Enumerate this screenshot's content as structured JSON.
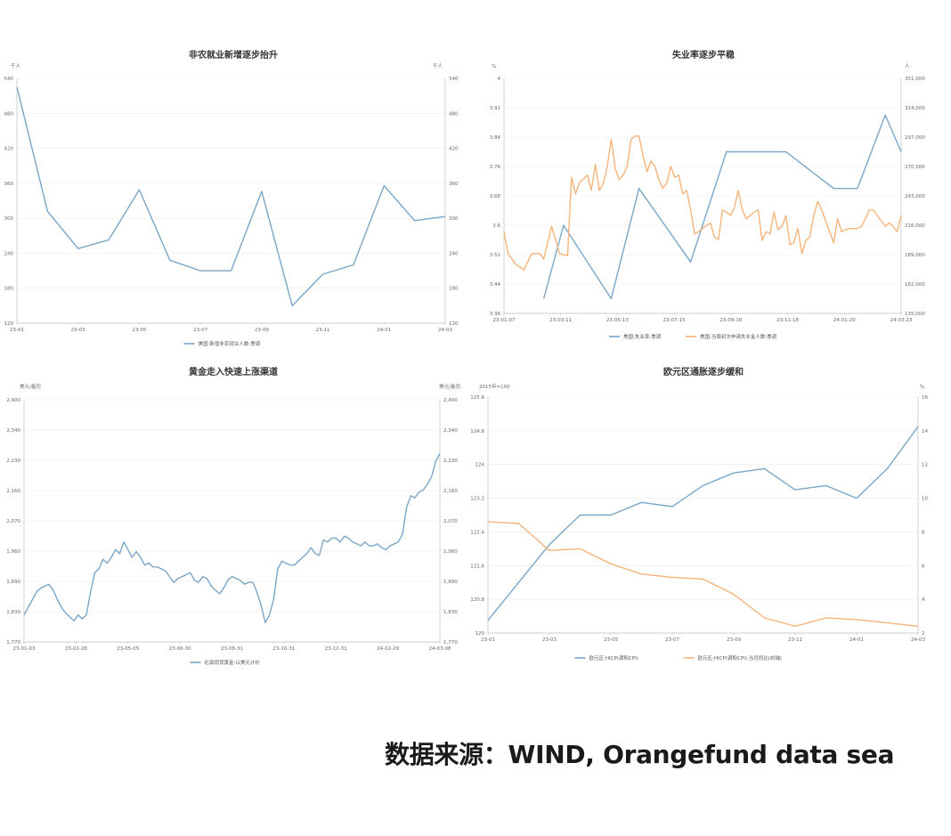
{
  "source_note": "数据来源：WIND, Orangefund data sea",
  "chart_data": [
    {
      "type": "line",
      "title": "非农就业新增逐步抬升",
      "unit_left": "千人",
      "unit_right": "千人",
      "categories": [
        "23-01",
        "23-02",
        "23-03",
        "23-04",
        "23-05",
        "23-06",
        "23-07",
        "23-08",
        "23-09",
        "23-10",
        "23-11",
        "23-12",
        "24-01",
        "24-02",
        "24-03"
      ],
      "x_ticks": [
        "23-01",
        "23-03",
        "23-05",
        "23-07",
        "23-09",
        "23-11",
        "24-01",
        "24-03"
      ],
      "y_ticks": [
        120,
        180,
        240,
        300,
        360,
        420,
        480,
        540
      ],
      "ylim": [
        120,
        540
      ],
      "series": [
        {
          "name": "美国:新增非农就业人数:季调",
          "color": "#7aa6c8",
          "values": [
            525,
            312,
            248,
            263,
            349,
            228,
            210,
            210,
            346,
            150,
            204,
            220,
            356,
            296,
            303
          ]
        }
      ]
    },
    {
      "type": "line",
      "title": "失业率逐步平稳",
      "unit_left": "%",
      "unit_right": "人",
      "x_ticks": [
        "23-01-07",
        "23-03-11",
        "23-05-13",
        "23-07-15",
        "23-09-16",
        "23-11-18",
        "24-01-20",
        "24-03-23"
      ],
      "y_ticks_left": [
        "3.36",
        "3.44",
        "3.52",
        "3.6",
        "3.68",
        "3.76",
        "3.84",
        "3.92",
        "4"
      ],
      "y_ticks_right": [
        "135,000",
        "162,000",
        "189,000",
        "216,000",
        "243,000",
        "270,000",
        "297,000",
        "324,000",
        "351,000"
      ],
      "ylim_left": [
        3.36,
        4.0
      ],
      "ylim_right": [
        135000,
        351000
      ],
      "series": [
        {
          "name": "美国:失业率:季调",
          "axis": "left",
          "color": "#7aa6c8",
          "x": [
            0.1,
            0.15,
            0.27,
            0.34,
            0.47,
            0.56,
            0.71,
            0.83,
            0.89,
            0.96,
            1.0
          ],
          "values": [
            3.4,
            3.6,
            3.4,
            3.7,
            3.5,
            3.8,
            3.8,
            3.7,
            3.7,
            3.9,
            3.8
          ]
        },
        {
          "name": "美国:当周初次申请失业金人数:季调",
          "axis": "right",
          "color": "#f5b47a",
          "x": [
            0.0,
            0.01,
            0.03,
            0.05,
            0.07,
            0.09,
            0.1,
            0.12,
            0.14,
            0.16,
            0.17,
            0.18,
            0.19,
            0.21,
            0.22,
            0.23,
            0.24,
            0.25,
            0.26,
            0.27,
            0.28,
            0.29,
            0.3,
            0.31,
            0.32,
            0.33,
            0.34,
            0.35,
            0.36,
            0.37,
            0.38,
            0.39,
            0.4,
            0.41,
            0.42,
            0.43,
            0.44,
            0.45,
            0.46,
            0.47,
            0.48,
            0.49,
            0.5,
            0.51,
            0.52,
            0.53,
            0.54,
            0.55,
            0.56,
            0.57,
            0.58,
            0.59,
            0.6,
            0.61,
            0.62,
            0.63,
            0.64,
            0.65,
            0.66,
            0.67,
            0.68,
            0.69,
            0.7,
            0.71,
            0.72,
            0.73,
            0.74,
            0.75,
            0.76,
            0.77,
            0.78,
            0.79,
            0.8,
            0.81,
            0.82,
            0.83,
            0.84,
            0.85,
            0.86,
            0.87,
            0.88,
            0.89,
            0.9,
            0.91,
            0.92,
            0.93,
            0.94,
            0.95,
            0.96,
            0.97,
            0.98,
            0.99,
            1.0
          ],
          "values": [
            210000,
            190000,
            180000,
            175000,
            190000,
            190000,
            185000,
            215000,
            190000,
            188000,
            260000,
            245000,
            255000,
            262000,
            248000,
            272000,
            248000,
            254000,
            270000,
            295000,
            268000,
            258000,
            262000,
            270000,
            295000,
            298000,
            298000,
            280000,
            265000,
            275000,
            270000,
            258000,
            250000,
            255000,
            270000,
            260000,
            262000,
            245000,
            248000,
            230000,
            208000,
            210000,
            213000,
            216000,
            218000,
            205000,
            203000,
            230000,
            228000,
            225000,
            232000,
            248000,
            230000,
            222000,
            225000,
            228000,
            230000,
            202000,
            210000,
            208000,
            228000,
            212000,
            215000,
            225000,
            198000,
            200000,
            213000,
            190000,
            202000,
            205000,
            225000,
            238000,
            230000,
            220000,
            210000,
            200000,
            222000,
            210000,
            212000,
            213000,
            213000,
            213000,
            215000,
            222000,
            230000,
            230000,
            225000,
            220000,
            215000,
            218000,
            215000,
            210000,
            225000
          ]
        }
      ]
    },
    {
      "type": "line",
      "title": "黄金走入快速上涨渠道",
      "unit_left": "美元/盎司",
      "unit_right": "美元/盎司",
      "x_ticks": [
        "23-01-03",
        "23-02-28",
        "23-05-05",
        "23-06-30",
        "23-08-31",
        "23-10-31",
        "23-12-31",
        "24-02-29",
        "24-03-08"
      ],
      "y_ticks": [
        "1,770",
        "1,830",
        "1,890",
        "1,960",
        "2,070",
        "2,160",
        "2,230",
        "2,340",
        "2,400"
      ],
      "ylim": [
        1770,
        2400
      ],
      "series": [
        {
          "name": "伦敦现货黄金:以美元计价",
          "color": "#7aa6c8",
          "x": [
            0.0,
            0.01,
            0.02,
            0.03,
            0.04,
            0.05,
            0.06,
            0.07,
            0.08,
            0.09,
            0.1,
            0.11,
            0.12,
            0.13,
            0.14,
            0.15,
            0.16,
            0.17,
            0.18,
            0.19,
            0.2,
            0.21,
            0.22,
            0.23,
            0.24,
            0.25,
            0.26,
            0.27,
            0.28,
            0.29,
            0.3,
            0.31,
            0.32,
            0.33,
            0.34,
            0.35,
            0.36,
            0.37,
            0.38,
            0.39,
            0.4,
            0.41,
            0.42,
            0.43,
            0.44,
            0.45,
            0.46,
            0.47,
            0.48,
            0.49,
            0.5,
            0.51,
            0.52,
            0.53,
            0.54,
            0.55,
            0.56,
            0.57,
            0.58,
            0.59,
            0.6,
            0.61,
            0.62,
            0.63,
            0.64,
            0.65,
            0.66,
            0.67,
            0.68,
            0.69,
            0.7,
            0.71,
            0.72,
            0.73,
            0.74,
            0.75,
            0.76,
            0.77,
            0.78,
            0.79,
            0.8,
            0.81,
            0.82,
            0.83,
            0.84,
            0.85,
            0.86,
            0.87,
            0.88,
            0.89,
            0.9,
            0.91,
            0.92,
            0.93,
            0.94,
            0.95,
            0.96,
            0.97,
            0.98,
            0.99,
            1.0
          ],
          "values": [
            1840,
            1860,
            1880,
            1900,
            1910,
            1915,
            1920,
            1905,
            1880,
            1860,
            1845,
            1835,
            1825,
            1840,
            1830,
            1840,
            1900,
            1950,
            1960,
            1985,
            1975,
            1990,
            2010,
            2000,
            2030,
            2010,
            1990,
            2005,
            1990,
            1970,
            1975,
            1965,
            1965,
            1960,
            1955,
            1940,
            1925,
            1935,
            1940,
            1945,
            1950,
            1930,
            1925,
            1940,
            1935,
            1915,
            1905,
            1895,
            1910,
            1930,
            1940,
            1935,
            1930,
            1920,
            1925,
            1925,
            1900,
            1865,
            1820,
            1840,
            1880,
            1960,
            1980,
            1975,
            1970,
            1970,
            1980,
            1990,
            2000,
            2015,
            2000,
            1995,
            2035,
            2030,
            2040,
            2040,
            2030,
            2045,
            2040,
            2030,
            2025,
            2020,
            2030,
            2020,
            2020,
            2025,
            2015,
            2010,
            2020,
            2025,
            2030,
            2050,
            2120,
            2150,
            2145,
            2160,
            2165,
            2180,
            2200,
            2240,
            2260
          ]
        }
      ]
    },
    {
      "type": "line",
      "title": "欧元区通胀逐步缓和",
      "unit_left": "2015年=100",
      "unit_right": "%",
      "categories": [
        "23-01",
        "23-02",
        "23-03",
        "23-04",
        "23-05",
        "23-06",
        "23-07",
        "23-08",
        "23-09",
        "23-10",
        "23-11",
        "23-12",
        "24-01",
        "24-02",
        "24-03"
      ],
      "x_ticks": [
        "23-01",
        "23-03",
        "23-05",
        "23-07",
        "23-09",
        "23-11",
        "24-01",
        "24-03"
      ],
      "y_ticks_left": [
        "120",
        "120.8",
        "121.6",
        "122.4",
        "123.2",
        "124",
        "124.8",
        "125.6"
      ],
      "y_ticks_right": [
        "2",
        "4",
        "6",
        "8",
        "10",
        "12",
        "14",
        "16"
      ],
      "ylim_left": [
        120,
        125.6
      ],
      "ylim_right": [
        2,
        16
      ],
      "series": [
        {
          "name": "欧元区:HICP(调和CPI)",
          "axis": "left",
          "color": "#7aa6c8",
          "values": [
            120.3,
            121.2,
            122.1,
            122.8,
            122.8,
            123.1,
            123.0,
            123.5,
            123.8,
            123.9,
            123.4,
            123.5,
            123.2,
            123.9,
            124.9
          ]
        },
        {
          "name": "欧元区:HICP(调和CPI):当月同比(右轴)",
          "axis": "right",
          "color": "#f5b47a",
          "values": [
            8.6,
            8.5,
            6.9,
            7.0,
            6.1,
            5.5,
            5.3,
            5.2,
            4.3,
            2.9,
            2.4,
            2.9,
            2.8,
            2.6,
            2.4
          ]
        }
      ]
    }
  ]
}
